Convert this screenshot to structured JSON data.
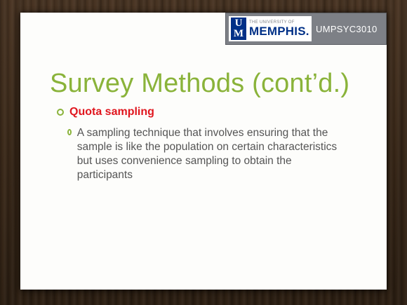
{
  "logo": {
    "small_text": "THE UNIVERSITY OF",
    "big_text": "MEMPHIS.",
    "mark_top": "U",
    "mark_bottom": "M"
  },
  "course_code": "UMPSYC3010",
  "title": "Survey Methods (cont’d.)",
  "bullets": [
    {
      "text": "Quota sampling",
      "sub": "A sampling technique that involves ensuring that the sample is like the population on certain characteristics but uses convenience sampling to obtain the participants"
    }
  ],
  "colors": {
    "title_green": "#8ab33a",
    "accent_red": "#e0161e",
    "memphis_blue": "#003087"
  }
}
